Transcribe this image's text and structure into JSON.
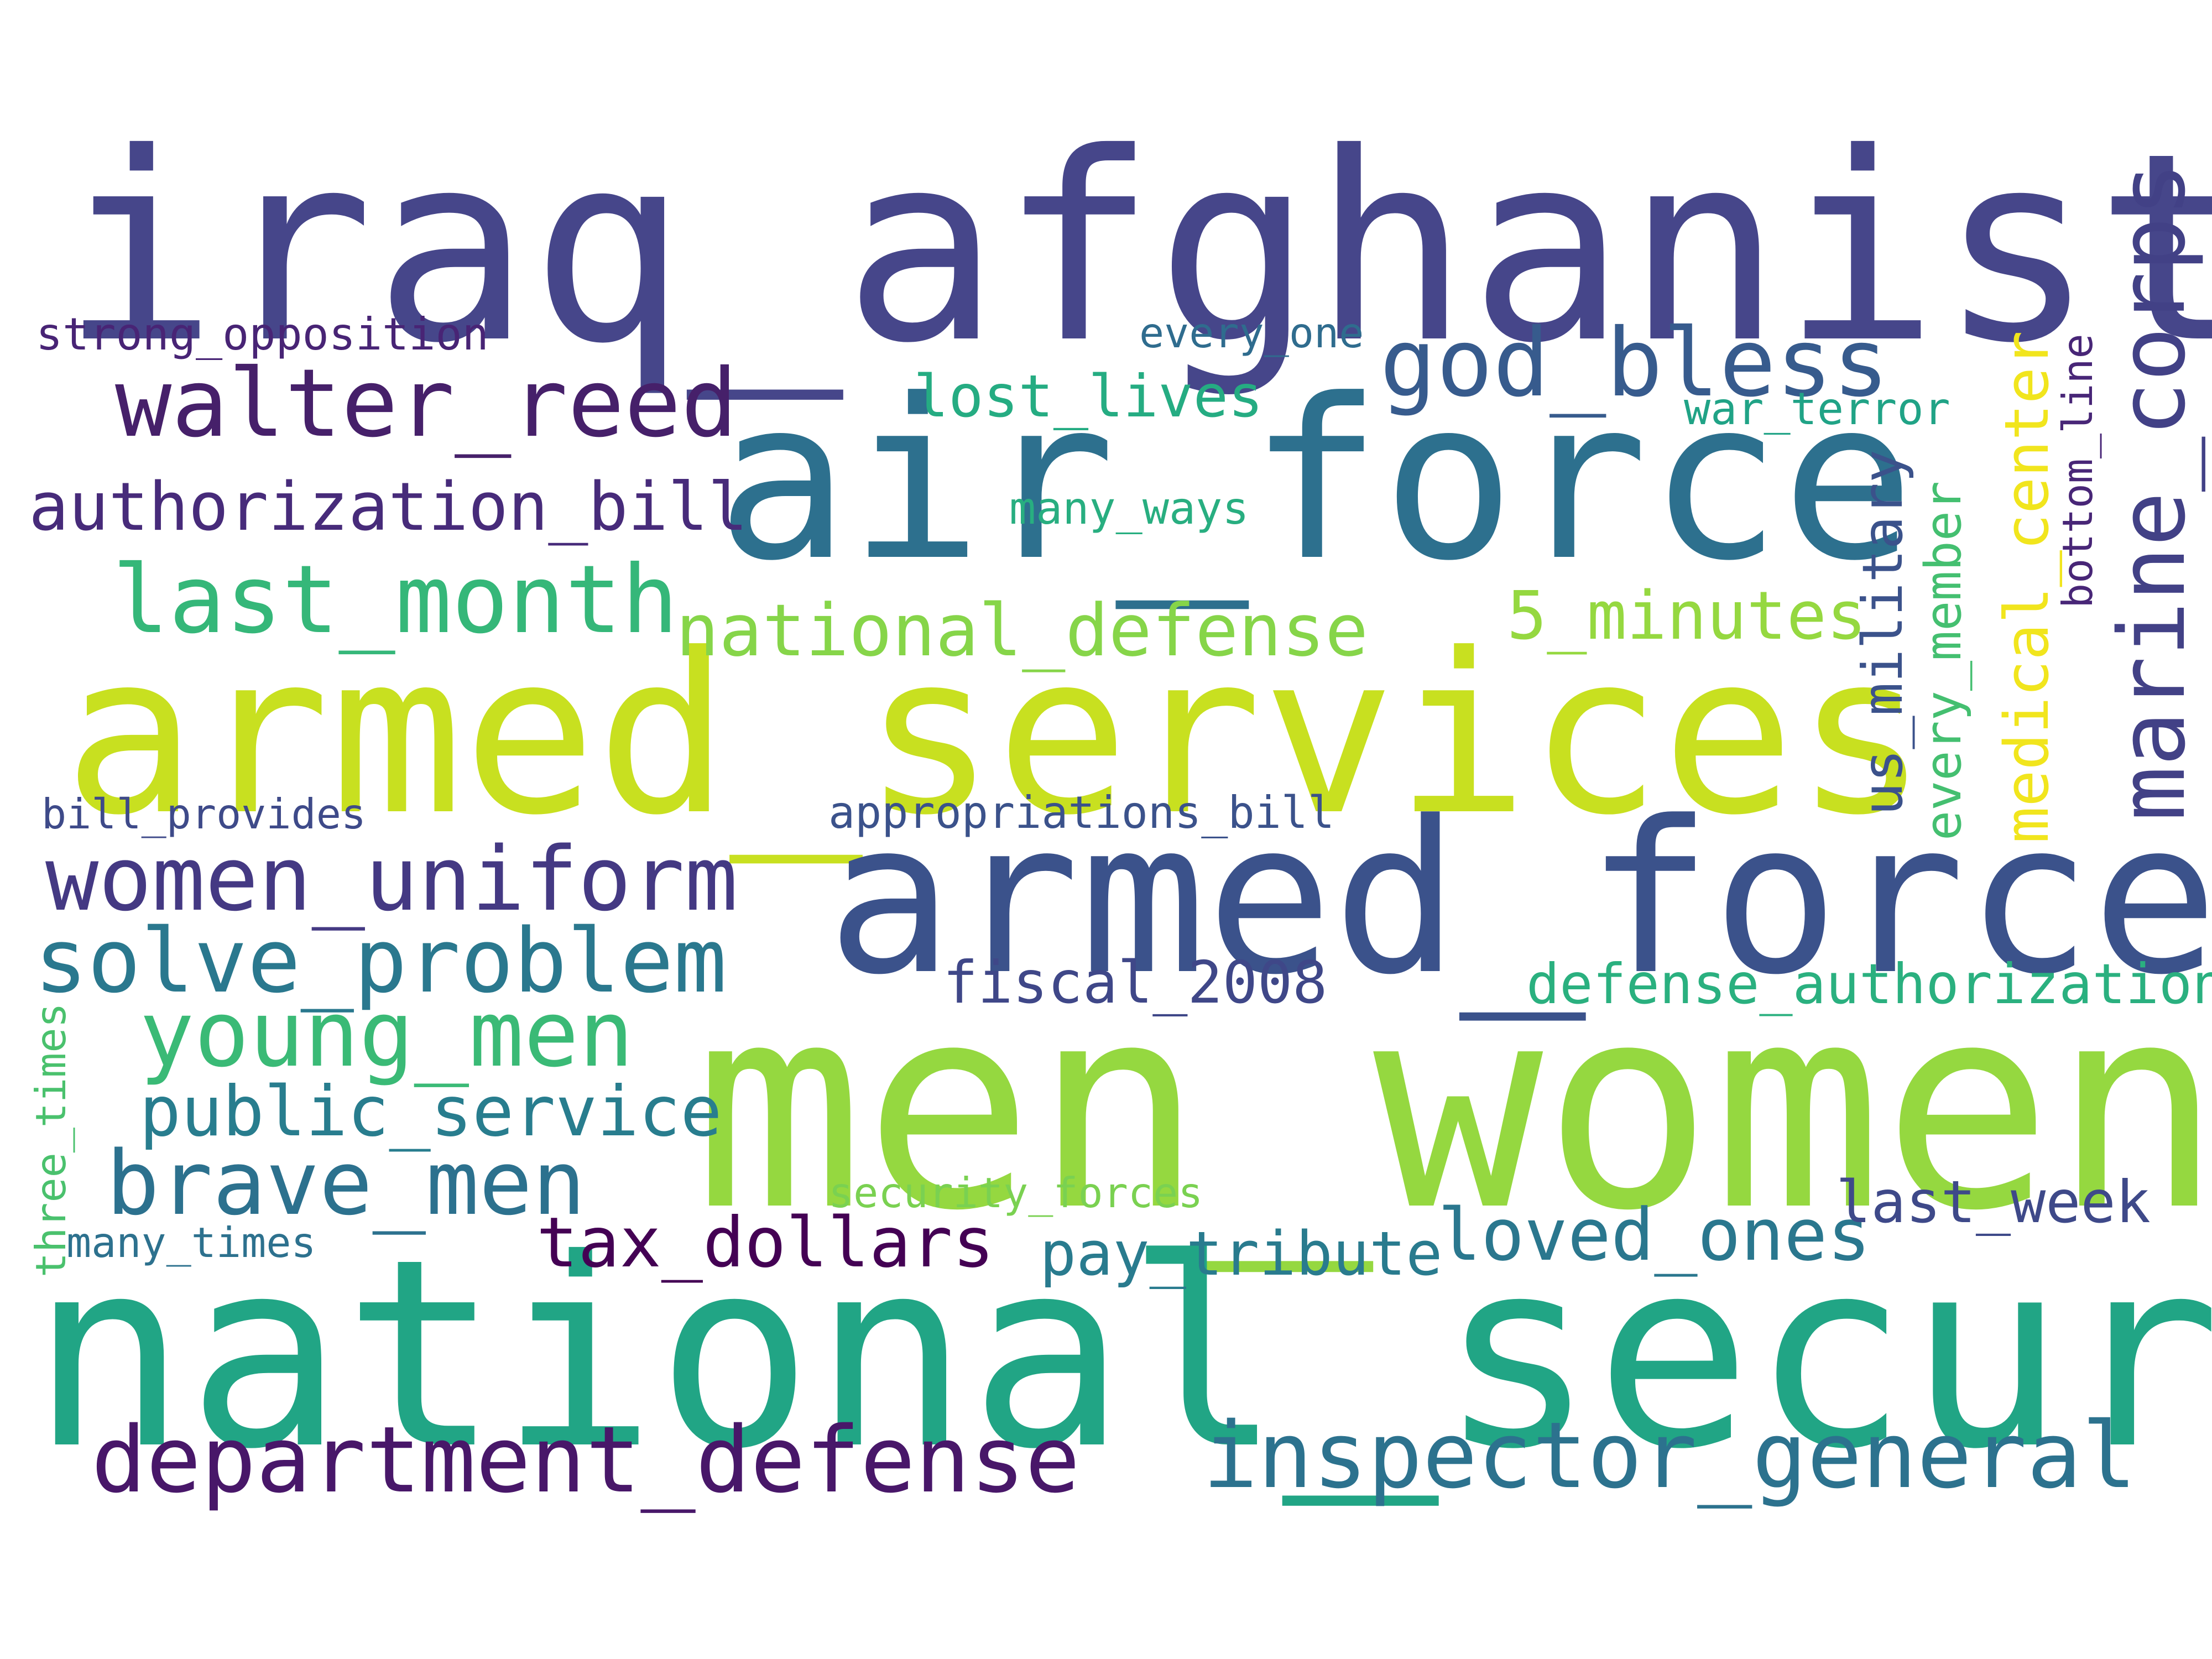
{
  "words": {
    "iraq_afghanistan": {
      "text": "iraq_afghanistan",
      "color": "#46468a"
    },
    "men_women": {
      "text": "men_women",
      "color": "#95d840"
    },
    "national_security": {
      "text": "national_security",
      "color": "#21a585"
    },
    "armed_services": {
      "text": "armed_services",
      "color": "#c8e020"
    },
    "air_force": {
      "text": "air_force",
      "color": "#2d708e"
    },
    "armed_forces": {
      "text": "armed_forces",
      "color": "#3b528b"
    },
    "walter_reed": {
      "text": "walter_reed",
      "color": "#46206a"
    },
    "god_bless": {
      "text": "god_bless",
      "color": "#375b8d"
    },
    "authorization_bill": {
      "text": "authorization_bill",
      "color": "#472b7a"
    },
    "last_month": {
      "text": "last_month",
      "color": "#35b779"
    },
    "national_defense": {
      "text": "national_defense",
      "color": "#86d549"
    },
    "5_minutes": {
      "text": "5_minutes",
      "color": "#95d840"
    },
    "women_uniform": {
      "text": "women_uniform",
      "color": "#443983"
    },
    "solve_problem": {
      "text": "solve_problem",
      "color": "#2a788e"
    },
    "young_men": {
      "text": "young_men",
      "color": "#3aba76"
    },
    "public_service": {
      "text": "public_service",
      "color": "#287d8e"
    },
    "brave_men": {
      "text": "brave_men",
      "color": "#2c718e"
    },
    "tax_dollars": {
      "text": "tax_dollars",
      "color": "#440154"
    },
    "pay_tribute": {
      "text": "pay_tribute",
      "color": "#297b8e"
    },
    "loved_ones": {
      "text": "loved_ones",
      "color": "#2a778e"
    },
    "last_week": {
      "text": "last_week",
      "color": "#3e4989"
    },
    "fiscal_2008": {
      "text": "fiscal_2008",
      "color": "#3f4788"
    },
    "defense_authorization": {
      "text": "defense_authorization",
      "color": "#2ab07f"
    },
    "department_defense": {
      "text": "department_defense",
      "color": "#481769"
    },
    "inspector_general": {
      "text": "inspector_general",
      "color": "#2c728e"
    },
    "strong_opposition": {
      "text": "strong_opposition",
      "color": "#482475"
    },
    "every_one": {
      "text": "every_one",
      "color": "#2f6c8e"
    },
    "lost_lives": {
      "text": "lost_lives",
      "color": "#25ac82"
    },
    "war_terror": {
      "text": "war_terror",
      "color": "#20a386"
    },
    "many_ways": {
      "text": "many_ways",
      "color": "#28ae80"
    },
    "bill_provides": {
      "text": "bill_provides",
      "color": "#3e4a89"
    },
    "appropriations_bill": {
      "text": "appropriations_bill",
      "color": "#3b528b"
    },
    "security_forces": {
      "text": "security_forces",
      "color": "#7ad151"
    },
    "many_times": {
      "text": "many_times",
      "color": "#2d718e"
    },
    "marine_corps": {
      "text": "marine_corps",
      "color": "#424186"
    },
    "medical_center": {
      "text": "medical_center",
      "color": "#f1e51d"
    },
    "us_military": {
      "text": "us_military",
      "color": "#3b528b"
    },
    "every_member": {
      "text": "every_member",
      "color": "#44bf70"
    },
    "bottom_line": {
      "text": "bottom_line",
      "color": "#482677"
    },
    "three_times": {
      "text": "three_times",
      "color": "#4ac16d"
    }
  }
}
